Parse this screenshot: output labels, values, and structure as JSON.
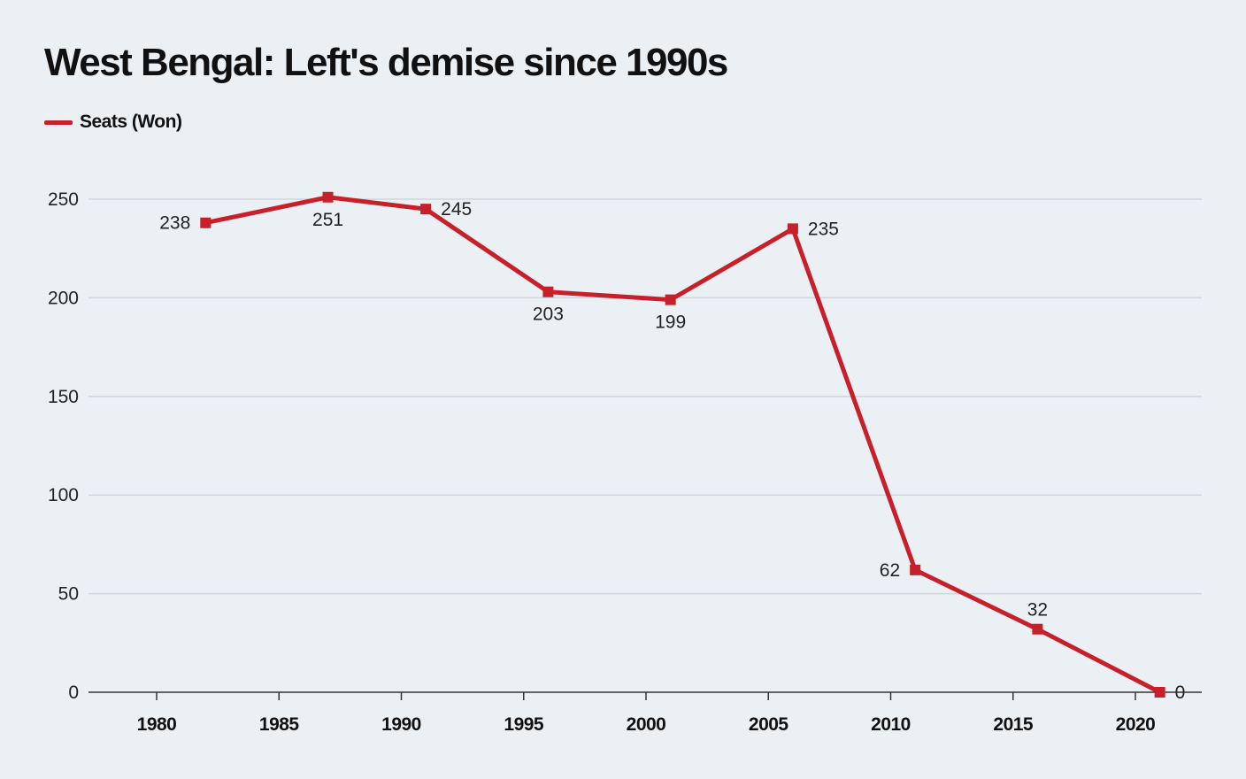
{
  "chart_data": {
    "type": "line",
    "title": "West Bengal: Left's demise since 1990s",
    "xlabel": "",
    "ylabel": "",
    "x": [
      1982,
      1987,
      1991,
      1996,
      2001,
      2006,
      2011,
      2016,
      2021
    ],
    "series": [
      {
        "name": "Seats (Won)",
        "values": [
          238,
          251,
          245,
          203,
          199,
          235,
          62,
          32,
          0
        ],
        "data_labels": [
          "238",
          "251",
          "245",
          "203",
          "199",
          "235",
          "62",
          "32",
          "0"
        ]
      }
    ],
    "x_ticks": [
      "1980",
      "1985",
      "1990",
      "1995",
      "2000",
      "2005",
      "2010",
      "2015",
      "2020"
    ],
    "y_ticks": [
      "0",
      "50",
      "100",
      "150",
      "200",
      "250"
    ],
    "xlim": [
      1979,
      2022
    ],
    "ylim": [
      0,
      250
    ],
    "grid": "horizontal",
    "legend_position": "top-left",
    "marker": "square"
  },
  "colors": {
    "background": "#ebf0f4",
    "series": "#c8202a",
    "grid": "#cfd6dc",
    "axis": "#333333"
  }
}
